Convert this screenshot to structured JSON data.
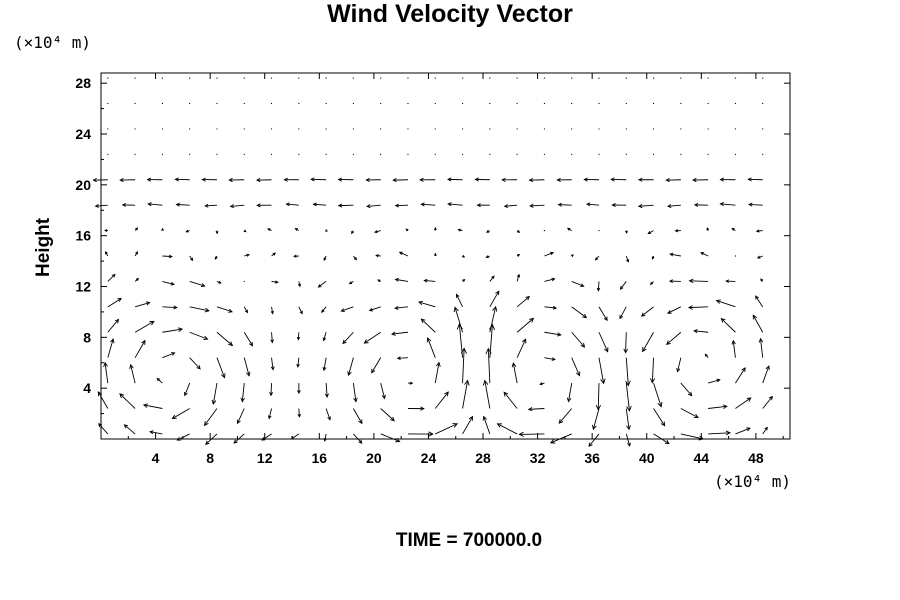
{
  "chart_data": {
    "type": "vector-field",
    "title": "Wind Velocity Vector",
    "ylabel": "Height",
    "xlabel": "",
    "x_unit_label": "(×10⁴ m)",
    "y_unit_label": "(×10⁴ m)",
    "annotation": "TIME = 700000.0",
    "xlim": [
      0,
      50.5
    ],
    "ylim": [
      0,
      28.8
    ],
    "xticks": [
      "4",
      "8",
      "12",
      "16",
      "20",
      "24",
      "28",
      "32",
      "36",
      "40",
      "44",
      "48"
    ],
    "yticks": [
      "4",
      "8",
      "12",
      "16",
      "20",
      "24",
      "28"
    ],
    "xtick_values": [
      4,
      8,
      12,
      16,
      20,
      24,
      28,
      32,
      36,
      40,
      44,
      48
    ],
    "ytick_values": [
      4,
      8,
      12,
      16,
      20,
      24,
      28
    ],
    "grid_spacing": {
      "dx": 2,
      "dy": 2
    },
    "vortex_centers": [
      {
        "x": 5,
        "y": 5,
        "direction": "clockwise",
        "strength": 1.0
      },
      {
        "x": 23,
        "y": 5,
        "direction": "counterclockwise",
        "strength": 0.9
      },
      {
        "x": 32,
        "y": 5,
        "direction": "clockwise",
        "strength": 0.9
      },
      {
        "x": 44,
        "y": 6,
        "direction": "counterclockwise",
        "strength": 0.9
      }
    ],
    "upper_jet": {
      "y_center": 19.5,
      "direction": "west"
    },
    "grid": false,
    "legend": "none"
  }
}
